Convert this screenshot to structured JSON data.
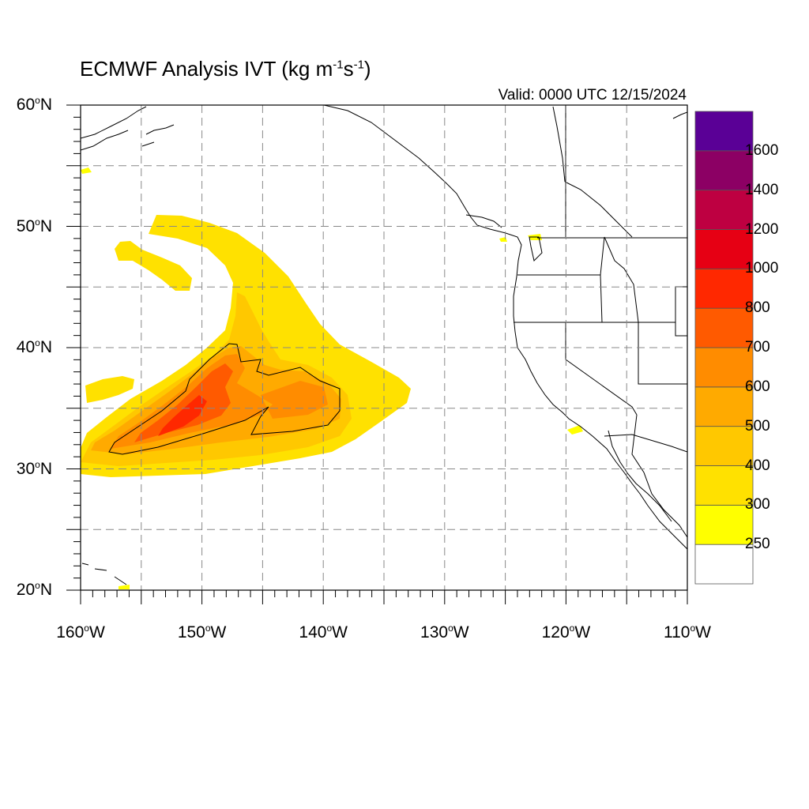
{
  "title": {
    "main": "ECMWF Analysis IVT (kg m",
    "exp1": "-1",
    "mid": "s",
    "exp2": "-1",
    "end": ")"
  },
  "valid_label": "Valid: 0000 UTC 12/15/2024",
  "map_extent": {
    "lon_min": -160,
    "lon_max": -110,
    "lat_min": 20,
    "lat_max": 60
  },
  "lat_ticks": [
    {
      "value": 60,
      "num": "60",
      "deg": "o",
      "hemi": "N"
    },
    {
      "value": 50,
      "num": "50",
      "deg": "o",
      "hemi": "N"
    },
    {
      "value": 40,
      "num": "40",
      "deg": "o",
      "hemi": "N"
    },
    {
      "value": 30,
      "num": "30",
      "deg": "o",
      "hemi": "N"
    },
    {
      "value": 20,
      "num": "20",
      "deg": "o",
      "hemi": "N"
    }
  ],
  "lon_ticks": [
    {
      "value": -160,
      "num": "160",
      "deg": "o",
      "hemi": "W"
    },
    {
      "value": -150,
      "num": "150",
      "deg": "o",
      "hemi": "W"
    },
    {
      "value": -140,
      "num": "140",
      "deg": "o",
      "hemi": "W"
    },
    {
      "value": -130,
      "num": "130",
      "deg": "o",
      "hemi": "W"
    },
    {
      "value": -120,
      "num": "120",
      "deg": "o",
      "hemi": "W"
    },
    {
      "value": -110,
      "num": "110",
      "deg": "o",
      "hemi": "W"
    }
  ],
  "colorbar": {
    "levels": [
      "250",
      "300",
      "400",
      "500",
      "600",
      "700",
      "800",
      "1000",
      "1200",
      "1400",
      "1600"
    ],
    "colors": [
      "#ffffff",
      "#ffff00",
      "#ffe100",
      "#ffc800",
      "#ffaa00",
      "#ff8c00",
      "#ff5a00",
      "#ff2800",
      "#e60014",
      "#be0041",
      "#8c0064",
      "#5a0096"
    ]
  },
  "colors": {
    "coast": "#000000",
    "border": "#999999",
    "grid": "#888888"
  }
}
